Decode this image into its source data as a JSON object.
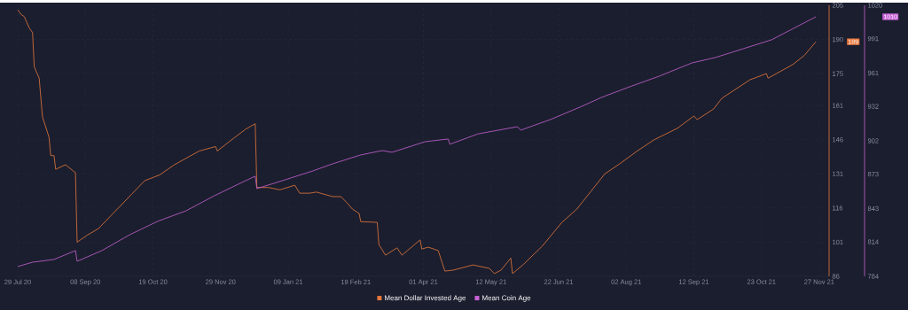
{
  "chart_data": {
    "type": "line",
    "series": [
      {
        "name": "Mean Dollar Invested Age",
        "color": "#e8783c",
        "axis": "y",
        "x": [
          "2020-07-29",
          "2020-07-31",
          "2020-08-02",
          "2020-08-05",
          "2020-08-07",
          "2020-08-08",
          "2020-08-11",
          "2020-08-13",
          "2020-08-17",
          "2020-08-18",
          "2020-08-20",
          "2020-08-21",
          "2020-08-27",
          "2020-09-02",
          "2020-09-03",
          "2020-09-09",
          "2020-09-16",
          "2020-09-24",
          "2020-10-06",
          "2020-10-14",
          "2020-10-23",
          "2020-11-01",
          "2020-11-16",
          "2020-11-26",
          "2020-11-27",
          "2020-12-04",
          "2020-12-14",
          "2020-12-20",
          "2020-12-21",
          "2020-12-28",
          "2021-01-04",
          "2021-01-13",
          "2021-01-16",
          "2021-01-22",
          "2021-01-26",
          "2021-02-05",
          "2021-02-10",
          "2021-02-14",
          "2021-02-17",
          "2021-02-21",
          "2021-02-22",
          "2021-03-04",
          "2021-03-05",
          "2021-03-09",
          "2021-03-16",
          "2021-03-19",
          "2021-03-30",
          "2021-03-31",
          "2021-04-04",
          "2021-04-10",
          "2021-04-14",
          "2021-04-19",
          "2021-05-01",
          "2021-05-11",
          "2021-05-14",
          "2021-05-18",
          "2021-05-24",
          "2021-05-25",
          "2021-05-31",
          "2021-06-12",
          "2021-06-24",
          "2021-07-03",
          "2021-07-20",
          "2021-07-29",
          "2021-08-09",
          "2021-08-19",
          "2021-09-02",
          "2021-09-12",
          "2021-09-14",
          "2021-09-24",
          "2021-09-29",
          "2021-10-07",
          "2021-10-16",
          "2021-10-26",
          "2021-10-27",
          "2021-11-03",
          "2021-11-11",
          "2021-11-18",
          "2021-11-25"
        ],
        "values": [
          203,
          201,
          200,
          195,
          193,
          178,
          173,
          156,
          147,
          139,
          139,
          133,
          135,
          131.5,
          101,
          104,
          107,
          113,
          122,
          128,
          130.5,
          135,
          141,
          143,
          141,
          145,
          150.5,
          153,
          125,
          125,
          124,
          126,
          122.5,
          122.5,
          123,
          121,
          121,
          118,
          115.5,
          113.6,
          110,
          109.7,
          100,
          95.3,
          98.5,
          95.3,
          102,
          98,
          98.8,
          97.3,
          88.3,
          88.7,
          91,
          89.5,
          87.2,
          88.7,
          94,
          87.2,
          90.8,
          99.2,
          109.7,
          115.5,
          131,
          135.4,
          141.2,
          146,
          151,
          156.4,
          154.8,
          159.5,
          164.2,
          168,
          172.3,
          175,
          173,
          175.8,
          179,
          183,
          189
        ]
      },
      {
        "name": "Mean Coin Age",
        "color": "#c862d6",
        "axis": "y2",
        "x": [
          "2020-07-29",
          "2020-08-07",
          "2020-08-20",
          "2020-09-02",
          "2020-09-03",
          "2020-09-18",
          "2020-10-05",
          "2020-10-22",
          "2020-11-08",
          "2020-11-25",
          "2020-12-12",
          "2020-12-20",
          "2020-12-21",
          "2021-01-07",
          "2021-01-24",
          "2021-02-05",
          "2021-02-22",
          "2021-03-07",
          "2021-03-13",
          "2021-04-02",
          "2021-04-16",
          "2021-04-17",
          "2021-05-04",
          "2021-05-28",
          "2021-05-30",
          "2021-06-17",
          "2021-07-06",
          "2021-07-18",
          "2021-08-04",
          "2021-08-22",
          "2021-09-11",
          "2021-09-25",
          "2021-10-12",
          "2021-10-29",
          "2021-11-25"
        ],
        "values": [
          792.5,
          796.3,
          798.7,
          806.4,
          797.1,
          806.4,
          820.3,
          832,
          841,
          854,
          865.8,
          871.2,
          860.4,
          868,
          875.8,
          882,
          889.7,
          893.5,
          892,
          901.2,
          903.6,
          899,
          908,
          914.3,
          911.3,
          920.5,
          932,
          939.8,
          949,
          958.3,
          969.9,
          974.5,
          982.2,
          989.9,
          1010
        ]
      }
    ],
    "xlim": [
      "2020-07-29",
      "2021-12-03"
    ],
    "xticks": [
      {
        "value": "2020-07-29",
        "label": "29 Jul 20"
      },
      {
        "value": "2020-09-08",
        "label": "08 Sep 20"
      },
      {
        "value": "2020-10-19",
        "label": "19 Oct 20"
      },
      {
        "value": "2020-11-29",
        "label": "29 Nov 20"
      },
      {
        "value": "2021-01-09",
        "label": "09 Jan 21"
      },
      {
        "value": "2021-02-19",
        "label": "19 Feb 21"
      },
      {
        "value": "2021-04-01",
        "label": "01 Apr 21"
      },
      {
        "value": "2021-05-12",
        "label": "12 May 21"
      },
      {
        "value": "2021-06-22",
        "label": "22 Jun 21"
      },
      {
        "value": "2021-08-02",
        "label": "02 Aug 21"
      },
      {
        "value": "2021-09-12",
        "label": "12 Sep 21"
      },
      {
        "value": "2021-10-23",
        "label": "23 Oct 21"
      },
      {
        "value": "2021-11-27",
        "label": "27 Nov 21"
      }
    ],
    "ylim": [
      86,
      205
    ],
    "yticks": [
      86,
      101,
      116,
      131,
      146,
      161,
      175,
      190,
      205
    ],
    "y2lim": [
      784,
      1020
    ],
    "y2ticks": [
      784,
      814,
      843,
      873,
      902,
      932,
      961,
      991,
      1020
    ],
    "grid": true,
    "legend": "bottom",
    "annotations": [
      "189",
      "1010"
    ]
  }
}
